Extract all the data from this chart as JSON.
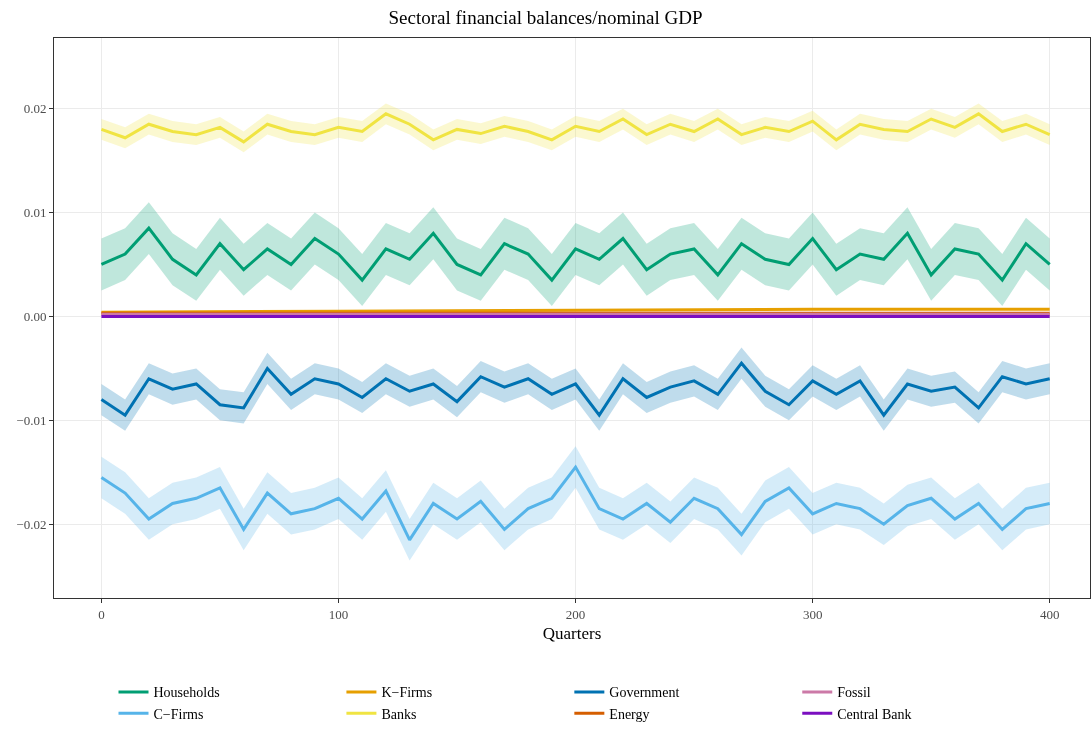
{
  "chart_data": {
    "type": "line",
    "title": "Sectoral financial balances/nominal GDP",
    "xlabel": "Quarters",
    "x": [
      0,
      10,
      20,
      30,
      40,
      50,
      60,
      70,
      80,
      90,
      100,
      110,
      120,
      130,
      140,
      150,
      160,
      170,
      180,
      190,
      200,
      210,
      220,
      230,
      240,
      250,
      260,
      270,
      280,
      290,
      300,
      310,
      320,
      330,
      340,
      350,
      360,
      370,
      380,
      390,
      400
    ],
    "xlim": [
      -20,
      417
    ],
    "xticks": [
      0,
      100,
      200,
      300,
      400
    ],
    "ylim": [
      -0.0271,
      0.0268
    ],
    "yticks": [
      {
        "value": -0.02,
        "label": "−0.02"
      },
      {
        "value": -0.01,
        "label": "−0.01"
      },
      {
        "value": 0,
        "label": "0.00"
      },
      0.01,
      0.02
    ],
    "grid": true,
    "legend": "bottom",
    "marker": "none",
    "line_style": "solid",
    "series": [
      {
        "name": "Households",
        "color": "#009e73",
        "values": [
          0.005,
          0.006,
          0.0085,
          0.0055,
          0.004,
          0.007,
          0.0045,
          0.0065,
          0.005,
          0.0075,
          0.006,
          0.0035,
          0.0065,
          0.0055,
          0.008,
          0.005,
          0.004,
          0.007,
          0.006,
          0.0035,
          0.0065,
          0.0055,
          0.0075,
          0.0045,
          0.006,
          0.0065,
          0.004,
          0.007,
          0.0055,
          0.005,
          0.0075,
          0.0045,
          0.006,
          0.0055,
          0.008,
          0.004,
          0.0065,
          0.006,
          0.0035,
          0.007,
          0.005
        ],
        "lower": [
          0.0025,
          0.0035,
          0.006,
          0.003,
          0.0015,
          0.0045,
          0.002,
          0.004,
          0.0025,
          0.005,
          0.0035,
          0.001,
          0.004,
          0.003,
          0.0055,
          0.0025,
          0.0015,
          0.0045,
          0.0035,
          0.001,
          0.004,
          0.003,
          0.005,
          0.002,
          0.0035,
          0.004,
          0.0015,
          0.0045,
          0.003,
          0.0025,
          0.005,
          0.002,
          0.0035,
          0.003,
          0.0055,
          0.0015,
          0.004,
          0.0035,
          0.001,
          0.0045,
          0.0025
        ],
        "upper": [
          0.0075,
          0.0085,
          0.011,
          0.008,
          0.0065,
          0.0095,
          0.007,
          0.009,
          0.0075,
          0.01,
          0.0085,
          0.006,
          0.009,
          0.008,
          0.0105,
          0.0075,
          0.0065,
          0.0095,
          0.0085,
          0.006,
          0.009,
          0.008,
          0.01,
          0.007,
          0.0085,
          0.009,
          0.0065,
          0.0095,
          0.008,
          0.0075,
          0.01,
          0.007,
          0.0085,
          0.008,
          0.0105,
          0.0065,
          0.009,
          0.0085,
          0.006,
          0.0095,
          0.0075
        ]
      },
      {
        "name": "C−Firms",
        "color": "#56b4e9",
        "values": [
          -0.0155,
          -0.017,
          -0.0195,
          -0.018,
          -0.0175,
          -0.0165,
          -0.0205,
          -0.017,
          -0.019,
          -0.0185,
          -0.0175,
          -0.0195,
          -0.0168,
          -0.0215,
          -0.018,
          -0.0195,
          -0.0178,
          -0.0205,
          -0.0185,
          -0.0175,
          -0.0145,
          -0.0185,
          -0.0195,
          -0.018,
          -0.0198,
          -0.0175,
          -0.0185,
          -0.021,
          -0.0178,
          -0.0165,
          -0.019,
          -0.018,
          -0.0185,
          -0.02,
          -0.0182,
          -0.0175,
          -0.0195,
          -0.018,
          -0.0205,
          -0.0185,
          -0.018
        ],
        "lower": [
          -0.0175,
          -0.019,
          -0.0215,
          -0.02,
          -0.0195,
          -0.0185,
          -0.0225,
          -0.019,
          -0.021,
          -0.0205,
          -0.0195,
          -0.0215,
          -0.0188,
          -0.0235,
          -0.02,
          -0.0215,
          -0.0198,
          -0.0225,
          -0.0205,
          -0.0195,
          -0.0165,
          -0.0205,
          -0.0215,
          -0.02,
          -0.0218,
          -0.0195,
          -0.0205,
          -0.023,
          -0.0198,
          -0.0185,
          -0.021,
          -0.02,
          -0.0205,
          -0.022,
          -0.0202,
          -0.0195,
          -0.0215,
          -0.02,
          -0.0225,
          -0.0205,
          -0.02
        ],
        "upper": [
          -0.0135,
          -0.015,
          -0.0175,
          -0.016,
          -0.0155,
          -0.0145,
          -0.0185,
          -0.015,
          -0.017,
          -0.0165,
          -0.0155,
          -0.0175,
          -0.0148,
          -0.0195,
          -0.016,
          -0.0175,
          -0.0158,
          -0.0185,
          -0.0165,
          -0.0155,
          -0.0125,
          -0.0165,
          -0.0175,
          -0.016,
          -0.0178,
          -0.0155,
          -0.0165,
          -0.019,
          -0.0158,
          -0.0145,
          -0.017,
          -0.016,
          -0.0165,
          -0.018,
          -0.0162,
          -0.0155,
          -0.0175,
          -0.016,
          -0.0185,
          -0.0165,
          -0.016
        ]
      },
      {
        "name": "K−Firms",
        "color": "#e69f00",
        "x": [
          0,
          100,
          200,
          300,
          400
        ],
        "values": [
          0.0004,
          0.0005,
          0.0006,
          0.0007,
          0.0007
        ]
      },
      {
        "name": "Banks",
        "color": "#f0e442",
        "values": [
          0.018,
          0.0172,
          0.0185,
          0.0178,
          0.0175,
          0.0182,
          0.0168,
          0.0185,
          0.0178,
          0.0175,
          0.0182,
          0.0178,
          0.0195,
          0.0185,
          0.017,
          0.018,
          0.0176,
          0.0183,
          0.0178,
          0.017,
          0.0183,
          0.0178,
          0.019,
          0.0175,
          0.0185,
          0.0178,
          0.019,
          0.0175,
          0.0182,
          0.0178,
          0.0188,
          0.017,
          0.0185,
          0.018,
          0.0178,
          0.019,
          0.0182,
          0.0195,
          0.0178,
          0.0185,
          0.0175
        ],
        "lower": [
          0.017,
          0.0162,
          0.0175,
          0.0168,
          0.0165,
          0.0172,
          0.0158,
          0.0175,
          0.0168,
          0.0165,
          0.0172,
          0.0168,
          0.0185,
          0.0175,
          0.016,
          0.017,
          0.0166,
          0.0173,
          0.0168,
          0.016,
          0.0173,
          0.0168,
          0.018,
          0.0165,
          0.0175,
          0.0168,
          0.018,
          0.0165,
          0.0172,
          0.0168,
          0.0178,
          0.016,
          0.0175,
          0.017,
          0.0168,
          0.018,
          0.0172,
          0.0185,
          0.0168,
          0.0175,
          0.0165
        ],
        "upper": [
          0.019,
          0.0182,
          0.0195,
          0.0188,
          0.0185,
          0.0192,
          0.0178,
          0.0195,
          0.0188,
          0.0185,
          0.0192,
          0.0188,
          0.0205,
          0.0195,
          0.018,
          0.019,
          0.0186,
          0.0193,
          0.0188,
          0.018,
          0.0193,
          0.0188,
          0.02,
          0.0185,
          0.0195,
          0.0188,
          0.02,
          0.0185,
          0.0192,
          0.0188,
          0.0198,
          0.018,
          0.0195,
          0.019,
          0.0188,
          0.02,
          0.0192,
          0.0205,
          0.0188,
          0.0195,
          0.0185
        ]
      },
      {
        "name": "Government",
        "color": "#0072b2",
        "values": [
          -0.008,
          -0.0095,
          -0.006,
          -0.007,
          -0.0065,
          -0.0085,
          -0.0088,
          -0.005,
          -0.0075,
          -0.006,
          -0.0065,
          -0.0078,
          -0.006,
          -0.0072,
          -0.0065,
          -0.0082,
          -0.0058,
          -0.0068,
          -0.006,
          -0.0075,
          -0.0065,
          -0.0095,
          -0.006,
          -0.0078,
          -0.0068,
          -0.0062,
          -0.0075,
          -0.0045,
          -0.0072,
          -0.0085,
          -0.0062,
          -0.0075,
          -0.0062,
          -0.0095,
          -0.0065,
          -0.0072,
          -0.0068,
          -0.0088,
          -0.0058,
          -0.0065,
          -0.006
        ],
        "lower": [
          -0.0095,
          -0.011,
          -0.0075,
          -0.0085,
          -0.008,
          -0.01,
          -0.0103,
          -0.0065,
          -0.009,
          -0.0075,
          -0.008,
          -0.0093,
          -0.0075,
          -0.0087,
          -0.008,
          -0.0097,
          -0.0073,
          -0.0083,
          -0.0075,
          -0.009,
          -0.008,
          -0.011,
          -0.0075,
          -0.0093,
          -0.0083,
          -0.0077,
          -0.009,
          -0.006,
          -0.0087,
          -0.01,
          -0.0077,
          -0.009,
          -0.0077,
          -0.011,
          -0.008,
          -0.0087,
          -0.0083,
          -0.0103,
          -0.0073,
          -0.008,
          -0.0075
        ],
        "upper": [
          -0.0065,
          -0.008,
          -0.0045,
          -0.0055,
          -0.005,
          -0.007,
          -0.0073,
          -0.0035,
          -0.006,
          -0.0045,
          -0.005,
          -0.0063,
          -0.0045,
          -0.0057,
          -0.005,
          -0.0067,
          -0.0043,
          -0.0053,
          -0.0045,
          -0.006,
          -0.005,
          -0.008,
          -0.0045,
          -0.0063,
          -0.0053,
          -0.0047,
          -0.006,
          -0.003,
          -0.0057,
          -0.007,
          -0.0047,
          -0.006,
          -0.0047,
          -0.008,
          -0.005,
          -0.0057,
          -0.0053,
          -0.0073,
          -0.0043,
          -0.005,
          -0.0045
        ]
      },
      {
        "name": "Energy",
        "color": "#d55e00",
        "x": [
          0,
          100,
          200,
          300,
          400
        ],
        "values": [
          0.0003,
          0.0003,
          0.0003,
          0.0003,
          0.0003
        ]
      },
      {
        "name": "Fossil",
        "color": "#cc79a7",
        "x": [
          0,
          100,
          200,
          300,
          400
        ],
        "values": [
          0.0002,
          0.0002,
          0.0002,
          0.0002,
          0.0002
        ]
      },
      {
        "name": "Central Bank",
        "color": "#7b0fc0",
        "x": [
          0,
          100,
          200,
          300,
          400
        ],
        "values": [
          0,
          0,
          0,
          0,
          0
        ]
      }
    ]
  }
}
